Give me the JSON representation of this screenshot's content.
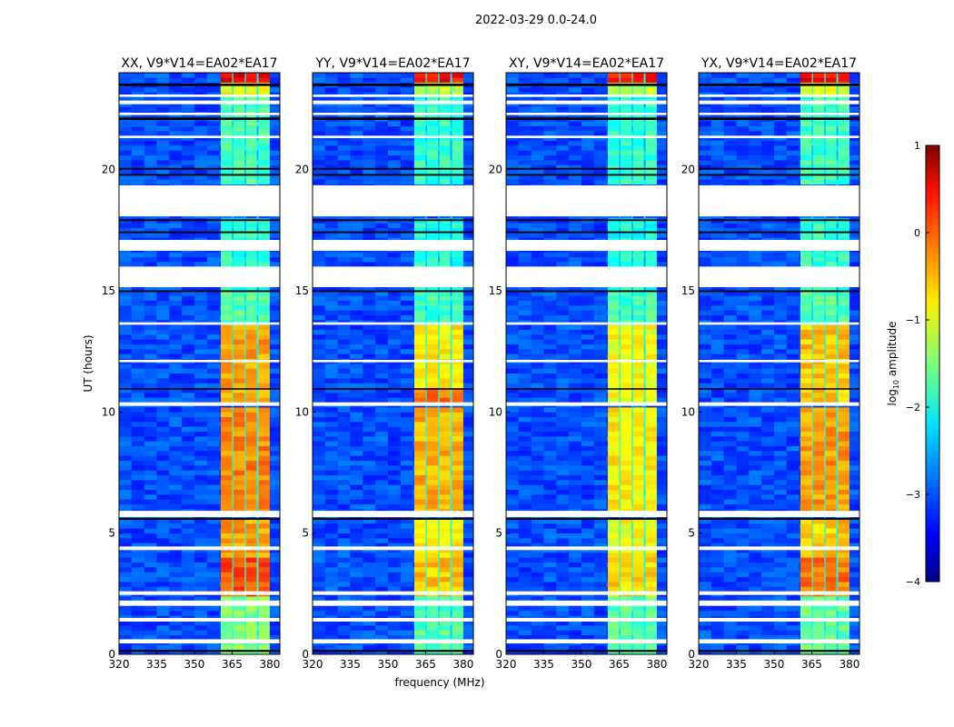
{
  "figure_title": "2022-03-29 0.0-24.0",
  "colorbar": {
    "label_main": "log",
    "label_sub": "10",
    "label_rest": " amplitude",
    "range": [
      -4,
      1
    ],
    "ticks": [
      {
        "v": 1,
        "label": "1"
      },
      {
        "v": 0,
        "label": "0"
      },
      {
        "v": -1,
        "label": "−1"
      },
      {
        "v": -2,
        "label": "−2"
      },
      {
        "v": -3,
        "label": "−3"
      },
      {
        "v": -4,
        "label": "−4"
      }
    ]
  },
  "chart_data": {
    "type": "heatmap",
    "xlabel": "frequency (MHz)",
    "ylabel": "UT (hours)",
    "xlim": [
      320,
      384
    ],
    "ylim": [
      0,
      24
    ],
    "xticks": [
      320,
      335,
      350,
      365,
      380
    ],
    "xtick_labels": [
      "320",
      "335",
      "350",
      "365",
      "380"
    ],
    "yticks": [
      0,
      5,
      10,
      15,
      20
    ],
    "ytick_labels": [
      "0",
      "5",
      "10",
      "15",
      "20"
    ],
    "colormap": "jet",
    "background_level": -3.0,
    "gap_level": -2.3,
    "hot_channels_mhz": [
      [
        360.5,
        365.0
      ],
      [
        365.5,
        370.0
      ],
      [
        370.5,
        374.8
      ],
      [
        375.5,
        380.0
      ]
    ],
    "flagged_hours": [
      [
        18.07,
        19.35
      ],
      [
        15.15,
        16.0
      ],
      [
        16.65,
        17.1
      ],
      [
        5.66,
        5.92
      ],
      [
        4.3,
        4.45
      ],
      [
        2.45,
        2.6
      ],
      [
        2.0,
        2.22
      ],
      [
        1.35,
        1.5
      ],
      [
        0.45,
        0.62
      ],
      [
        13.6,
        13.7
      ],
      [
        12.05,
        12.15
      ],
      [
        10.25,
        10.4
      ],
      [
        22.7,
        22.85
      ],
      [
        23.0,
        23.1
      ],
      [
        21.3,
        21.4
      ],
      [
        22.25,
        22.35
      ]
    ],
    "dropout_hours": [
      [
        23.45,
        23.55
      ],
      [
        22.05,
        22.15
      ],
      [
        20.0,
        20.07
      ],
      [
        19.75,
        19.82
      ],
      [
        17.88,
        17.95
      ],
      [
        17.38,
        17.45
      ],
      [
        10.92,
        10.98
      ],
      [
        5.55,
        5.62
      ],
      [
        0.1,
        0.18
      ],
      [
        14.95,
        15.02
      ]
    ],
    "panels": [
      {
        "title": "XX, V9*V14=EA02*EA17",
        "segments": [
          {
            "from": 0,
            "to": 2.5,
            "level": -1.5
          },
          {
            "from": 2.5,
            "to": 4.0,
            "level": 0.0
          },
          {
            "from": 4.0,
            "to": 5.6,
            "level": -0.4
          },
          {
            "from": 5.9,
            "to": 10.2,
            "level": -0.3
          },
          {
            "from": 10.4,
            "to": 13.6,
            "level": -0.4
          },
          {
            "from": 13.6,
            "to": 15.0,
            "level": -1.7
          },
          {
            "from": 15.0,
            "to": 18.0,
            "level": -1.9
          },
          {
            "from": 19.4,
            "to": 22.9,
            "level": -1.8
          },
          {
            "from": 22.9,
            "to": 23.5,
            "level": -0.9
          },
          {
            "from": 23.5,
            "to": 24,
            "level": 0.5
          }
        ]
      },
      {
        "title": "YY, V9*V14=EA02*EA17",
        "segments": [
          {
            "from": 0,
            "to": 2.5,
            "level": -1.7
          },
          {
            "from": 2.5,
            "to": 4.0,
            "level": -0.6
          },
          {
            "from": 4.0,
            "to": 5.6,
            "level": -0.8
          },
          {
            "from": 5.9,
            "to": 10.2,
            "level": -0.5
          },
          {
            "from": 10.4,
            "to": 11.0,
            "level": -0.2
          },
          {
            "from": 11.0,
            "to": 13.6,
            "level": -0.8
          },
          {
            "from": 13.6,
            "to": 15.0,
            "level": -1.8
          },
          {
            "from": 15.0,
            "to": 18.0,
            "level": -2.0
          },
          {
            "from": 19.4,
            "to": 22.9,
            "level": -1.9
          },
          {
            "from": 22.9,
            "to": 23.5,
            "level": -1.2
          },
          {
            "from": 23.5,
            "to": 24,
            "level": 0.3
          }
        ]
      },
      {
        "title": "XY, V9*V14=EA02*EA17",
        "segments": [
          {
            "from": 0,
            "to": 2.5,
            "level": -1.7
          },
          {
            "from": 2.5,
            "to": 4.0,
            "level": -0.7
          },
          {
            "from": 4.0,
            "to": 5.6,
            "level": -0.9
          },
          {
            "from": 5.9,
            "to": 10.2,
            "level": -0.8
          },
          {
            "from": 10.4,
            "to": 13.6,
            "level": -0.9
          },
          {
            "from": 13.6,
            "to": 15.0,
            "level": -1.8
          },
          {
            "from": 15.0,
            "to": 18.0,
            "level": -2.0
          },
          {
            "from": 19.4,
            "to": 22.9,
            "level": -1.9
          },
          {
            "from": 22.9,
            "to": 23.5,
            "level": -1.2
          },
          {
            "from": 23.5,
            "to": 24,
            "level": 0.2
          }
        ]
      },
      {
        "title": "YX, V9*V14=EA02*EA17",
        "segments": [
          {
            "from": 0,
            "to": 2.5,
            "level": -1.6
          },
          {
            "from": 2.5,
            "to": 4.0,
            "level": -0.2
          },
          {
            "from": 4.0,
            "to": 5.6,
            "level": -0.6
          },
          {
            "from": 5.9,
            "to": 10.2,
            "level": -0.4
          },
          {
            "from": 10.4,
            "to": 13.6,
            "level": -0.6
          },
          {
            "from": 13.6,
            "to": 15.0,
            "level": -1.7
          },
          {
            "from": 15.0,
            "to": 18.0,
            "level": -1.9
          },
          {
            "from": 19.4,
            "to": 22.9,
            "level": -1.8
          },
          {
            "from": 22.9,
            "to": 23.5,
            "level": -1.0
          },
          {
            "from": 23.5,
            "to": 24,
            "level": 0.4
          }
        ]
      }
    ]
  }
}
